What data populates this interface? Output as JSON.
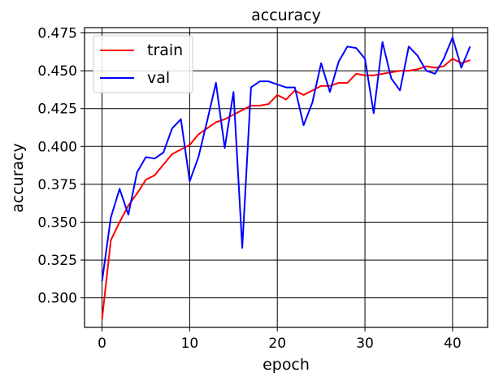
{
  "chart_data": {
    "type": "line",
    "title": "accuracy",
    "xlabel": "epoch",
    "ylabel": "accuracy",
    "xlim": [
      -2,
      44
    ],
    "ylim": [
      0.2805,
      0.4785
    ],
    "xticks": [
      0,
      10,
      20,
      30,
      40
    ],
    "yticks": [
      0.3,
      0.325,
      0.35,
      0.375,
      0.4,
      0.425,
      0.45,
      0.475
    ],
    "ytick_labels": [
      "0.300",
      "0.325",
      "0.350",
      "0.375",
      "0.400",
      "0.425",
      "0.450",
      "0.475"
    ],
    "grid": true,
    "legend_position": "upper left",
    "x": [
      0,
      1,
      2,
      3,
      4,
      5,
      6,
      7,
      8,
      9,
      10,
      11,
      12,
      13,
      14,
      15,
      16,
      17,
      18,
      19,
      20,
      21,
      22,
      23,
      24,
      25,
      26,
      27,
      28,
      29,
      30,
      31,
      32,
      33,
      34,
      35,
      36,
      37,
      38,
      39,
      40,
      41,
      42
    ],
    "series": [
      {
        "name": "train",
        "color": "#ff0000",
        "values": [
          0.286,
          0.338,
          0.35,
          0.361,
          0.369,
          0.378,
          0.381,
          0.388,
          0.395,
          0.398,
          0.401,
          0.408,
          0.412,
          0.416,
          0.418,
          0.421,
          0.424,
          0.427,
          0.427,
          0.428,
          0.434,
          0.431,
          0.437,
          0.434,
          0.437,
          0.44,
          0.44,
          0.442,
          0.442,
          0.448,
          0.447,
          0.447,
          0.448,
          0.449,
          0.45,
          0.45,
          0.451,
          0.453,
          0.452,
          0.453,
          0.458,
          0.455,
          0.457
        ]
      },
      {
        "name": "val",
        "color": "#0000ff",
        "values": [
          0.311,
          0.353,
          0.372,
          0.355,
          0.383,
          0.393,
          0.392,
          0.396,
          0.412,
          0.418,
          0.377,
          0.393,
          0.417,
          0.442,
          0.399,
          0.436,
          0.333,
          0.439,
          0.443,
          0.443,
          0.441,
          0.439,
          0.439,
          0.414,
          0.429,
          0.455,
          0.436,
          0.456,
          0.466,
          0.465,
          0.458,
          0.422,
          0.469,
          0.445,
          0.437,
          0.466,
          0.46,
          0.45,
          0.448,
          0.458,
          0.472,
          0.452,
          0.466
        ]
      }
    ]
  }
}
